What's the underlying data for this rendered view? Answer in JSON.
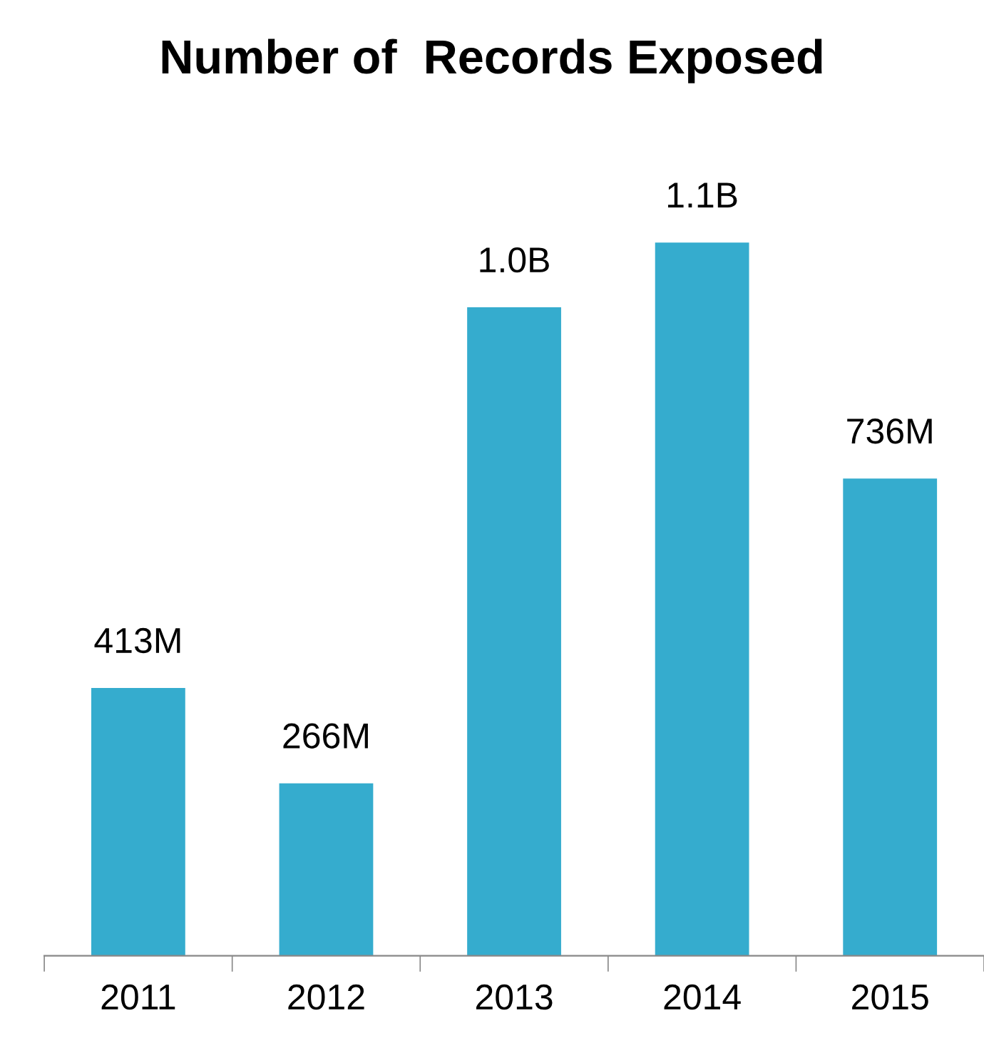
{
  "chart_data": {
    "type": "bar",
    "title": "Number of  Records Exposed",
    "categories": [
      "2011",
      "2012",
      "2013",
      "2014",
      "2015"
    ],
    "values": [
      413000000,
      266000000,
      1000000000,
      1100000000,
      736000000
    ],
    "value_labels": [
      "413M",
      "266M",
      "1.0B",
      "1.1B",
      "736M"
    ],
    "color": "#35acce",
    "grid": false,
    "legend": false,
    "tick_labels": "x"
  }
}
